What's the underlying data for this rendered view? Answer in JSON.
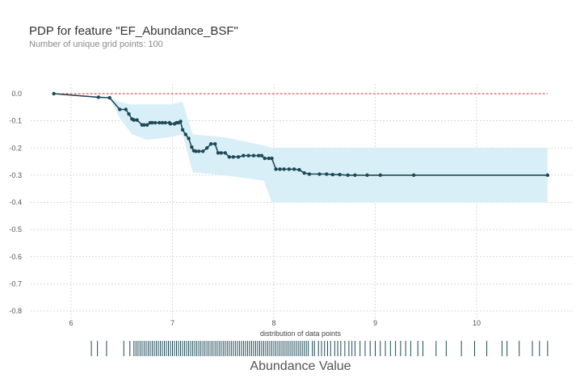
{
  "title": "PDP for feature \"EF_Abundance_BSF\"",
  "subtitle": "Number of unique grid points: 100",
  "chart_data": {
    "type": "line",
    "title": "PDP for feature \"EF_Abundance_BSF\"",
    "subtitle": "Number of unique grid points: 100",
    "xlabel": "Abundance Value",
    "ylabel": "",
    "distribution_label": "distribution of data points",
    "xlim": [
      5.5,
      10.9
    ],
    "ylim": [
      -0.82,
      0.02
    ],
    "xticks": [
      6,
      7,
      8,
      9,
      10
    ],
    "yticks": [
      0.0,
      -0.1,
      -0.2,
      -0.3,
      -0.4,
      -0.5,
      -0.6,
      -0.7,
      -0.8
    ],
    "grid": true,
    "colors": {
      "line": "#1c4a57",
      "band": "#d9eff7",
      "baseline": "#c0392b",
      "grid": "#cccccc"
    },
    "series": [
      {
        "x": [
          5.83,
          6.27,
          6.38,
          6.48,
          6.54,
          6.57,
          6.6,
          6.62,
          6.65,
          6.7,
          6.72,
          6.75,
          6.78,
          6.8,
          6.83,
          6.87,
          6.9,
          6.93,
          6.97,
          6.98,
          7.02,
          7.04,
          7.06,
          7.08,
          7.1,
          7.13,
          7.16,
          7.19,
          7.21,
          7.23,
          7.26,
          7.3,
          7.34,
          7.38,
          7.42,
          7.45,
          7.48,
          7.52,
          7.56,
          7.6,
          7.65,
          7.7,
          7.75,
          7.8,
          7.85,
          7.88,
          7.91,
          7.95,
          7.98,
          8.02,
          8.06,
          8.1,
          8.15,
          8.2,
          8.25,
          8.3,
          8.35,
          8.45,
          8.52,
          8.58,
          8.65,
          8.73,
          8.8,
          8.92,
          9.05,
          9.38,
          10.7
        ],
        "y": [
          0.0,
          -0.013,
          -0.015,
          -0.058,
          -0.058,
          -0.075,
          -0.093,
          -0.097,
          -0.097,
          -0.115,
          -0.115,
          -0.115,
          -0.107,
          -0.107,
          -0.107,
          -0.107,
          -0.107,
          -0.107,
          -0.107,
          -0.111,
          -0.111,
          -0.107,
          -0.107,
          -0.102,
          -0.133,
          -0.15,
          -0.165,
          -0.197,
          -0.21,
          -0.212,
          -0.212,
          -0.212,
          -0.2,
          -0.185,
          -0.185,
          -0.218,
          -0.218,
          -0.218,
          -0.233,
          -0.233,
          -0.233,
          -0.228,
          -0.228,
          -0.228,
          -0.228,
          -0.228,
          -0.238,
          -0.238,
          -0.238,
          -0.278,
          -0.278,
          -0.278,
          -0.278,
          -0.278,
          -0.28,
          -0.292,
          -0.296,
          -0.296,
          -0.296,
          -0.298,
          -0.298,
          -0.3,
          -0.3,
          -0.3,
          -0.3,
          -0.3,
          -0.3
        ]
      }
    ],
    "confidence_band": {
      "x": [
        5.83,
        6.27,
        6.38,
        6.48,
        6.6,
        6.75,
        6.98,
        7.1,
        7.2,
        7.5,
        7.9,
        7.98,
        8.3,
        8.6,
        10.7
      ],
      "upper": [
        0.0,
        -0.013,
        -0.015,
        -0.03,
        -0.04,
        -0.04,
        -0.04,
        -0.03,
        -0.15,
        -0.16,
        -0.19,
        -0.2,
        -0.2,
        -0.2,
        -0.2
      ],
      "lower": [
        0.0,
        -0.013,
        -0.015,
        -0.09,
        -0.15,
        -0.17,
        -0.16,
        -0.15,
        -0.29,
        -0.3,
        -0.32,
        -0.4,
        -0.4,
        -0.4,
        -0.4
      ]
    },
    "distribution_points": [
      6.2,
      6.26,
      6.35,
      6.52,
      6.58,
      6.62,
      6.64,
      6.66,
      6.68,
      6.7,
      6.72,
      6.74,
      6.76,
      6.78,
      6.8,
      6.82,
      6.84,
      6.86,
      6.88,
      6.9,
      6.92,
      6.94,
      6.96,
      6.98,
      7.0,
      7.02,
      7.04,
      7.06,
      7.08,
      7.1,
      7.12,
      7.14,
      7.16,
      7.18,
      7.2,
      7.22,
      7.24,
      7.26,
      7.28,
      7.3,
      7.32,
      7.34,
      7.36,
      7.38,
      7.4,
      7.42,
      7.44,
      7.46,
      7.48,
      7.5,
      7.52,
      7.54,
      7.56,
      7.58,
      7.6,
      7.62,
      7.64,
      7.66,
      7.68,
      7.7,
      7.72,
      7.74,
      7.76,
      7.78,
      7.8,
      7.82,
      7.84,
      7.86,
      7.88,
      7.9,
      7.92,
      7.94,
      7.96,
      7.98,
      8.0,
      8.02,
      8.04,
      8.06,
      8.08,
      8.1,
      8.12,
      8.14,
      8.16,
      8.18,
      8.2,
      8.22,
      8.24,
      8.26,
      8.28,
      8.3,
      8.32,
      8.34,
      8.38,
      8.4,
      8.44,
      8.47,
      8.5,
      8.53,
      8.56,
      8.6,
      8.63,
      8.66,
      8.7,
      8.74,
      8.77,
      8.8,
      8.85,
      8.9,
      8.95,
      9.0,
      9.05,
      9.1,
      9.15,
      9.2,
      9.25,
      9.3,
      9.35,
      9.42,
      9.47,
      9.6,
      9.7,
      9.85,
      9.98,
      10.1,
      10.25,
      10.3,
      10.42,
      10.55,
      10.62,
      10.7
    ]
  }
}
